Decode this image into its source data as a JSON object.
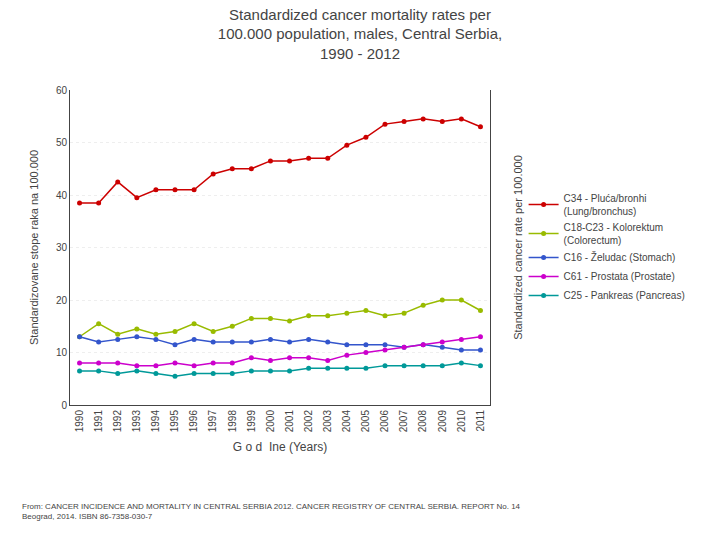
{
  "chart_data": {
    "type": "line",
    "title": "Standardized cancer mortality rates per\n100.000 population, males, Central Serbia,\n1990 - 2012",
    "xlabel": "G o d  Ine (Years)",
    "ylabel": "Standardizovane stope raka na 100.000",
    "y2label": "Standardized cancer rate per 100.000",
    "annotations": [
      "From: CANCER INCIDENCE AND MORTALITY IN CENTRAL SERBIA 2012. CANCER REGISTRY OF CENTRAL SERBIA. REPORT No. 14\nBeograd, 2014. ISBN 86-7358-030-7"
    ],
    "x": [
      1990,
      1991,
      1992,
      1993,
      1994,
      1995,
      1996,
      1997,
      1998,
      1999,
      2000,
      2001,
      2002,
      2003,
      2004,
      2005,
      2006,
      2007,
      2008,
      2009,
      2010,
      2011
    ],
    "series": [
      {
        "name": "C34 - Pluća/bronhi\n(Lung/bronchus)",
        "color": "#cc0000",
        "values": [
          38.5,
          38.5,
          42.5,
          39.5,
          41.0,
          41.0,
          41.0,
          44.0,
          45.0,
          45.0,
          46.5,
          46.5,
          47.0,
          47.0,
          49.5,
          51.0,
          53.5,
          54.0,
          54.5,
          54.0,
          54.5,
          53.0
        ]
      },
      {
        "name": "C18-C23 - Kolorektum\n(Colorectum)",
        "color": "#99bb00",
        "values": [
          13.0,
          15.5,
          13.5,
          14.5,
          13.5,
          14.0,
          15.5,
          14.0,
          15.0,
          16.5,
          16.5,
          16.0,
          17.0,
          17.0,
          17.5,
          18.0,
          17.0,
          17.5,
          19.0,
          20.0,
          20.0,
          18.0
        ]
      },
      {
        "name": "C16 - Želudac (Stomach)",
        "color": "#3355cc",
        "values": [
          13.0,
          12.0,
          12.5,
          13.0,
          12.5,
          11.5,
          12.5,
          12.0,
          12.0,
          12.0,
          12.5,
          12.0,
          12.5,
          12.0,
          11.5,
          11.5,
          11.5,
          11.0,
          11.5,
          11.0,
          10.5,
          10.5
        ]
      },
      {
        "name": "C61 - Prostata (Prostate)",
        "color": "#cc00cc",
        "values": [
          8.0,
          8.0,
          8.0,
          7.5,
          7.5,
          8.0,
          7.5,
          8.0,
          8.0,
          9.0,
          8.5,
          9.0,
          9.0,
          8.5,
          9.5,
          10.0,
          10.5,
          11.0,
          11.5,
          12.0,
          12.5,
          13.0
        ]
      },
      {
        "name": "C25 - Pankreas (Pancreas)",
        "color": "#009999",
        "values": [
          6.5,
          6.5,
          6.0,
          6.5,
          6.0,
          5.5,
          6.0,
          6.0,
          6.0,
          6.5,
          6.5,
          6.5,
          7.0,
          7.0,
          7.0,
          7.0,
          7.5,
          7.5,
          7.5,
          7.5,
          8.0,
          7.5
        ]
      }
    ],
    "xlim": [
      1989.5,
      2011.5
    ],
    "xticks": [
      1990,
      1991,
      1992,
      1993,
      1994,
      1995,
      1996,
      1997,
      1998,
      1999,
      2000,
      2001,
      2002,
      2003,
      2004,
      2005,
      2006,
      2007,
      2008,
      2009,
      2010,
      2011
    ],
    "ylim": [
      0,
      60
    ],
    "yticks": [
      0,
      10,
      20,
      30,
      40,
      50,
      60
    ],
    "grid": true,
    "legend": "right",
    "marker": "circle"
  }
}
